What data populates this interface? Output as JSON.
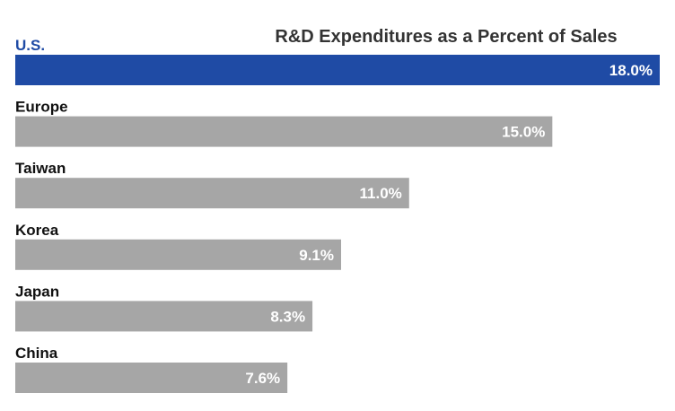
{
  "chart_data": {
    "type": "bar",
    "orientation": "horizontal",
    "title": "R&D Expenditures as a Percent of Sales",
    "categories": [
      "U.S.",
      "Europe",
      "Taiwan",
      "Korea",
      "Japan",
      "China"
    ],
    "values": [
      18.0,
      15.0,
      11.0,
      9.1,
      8.3,
      7.6
    ],
    "value_labels": [
      "18.0%",
      "15.0%",
      "11.0%",
      "9.1%",
      "8.3%",
      "7.6%"
    ],
    "highlight_category": "U.S.",
    "xlim": [
      0,
      18
    ],
    "xlabel": "",
    "ylabel": "",
    "grid": false,
    "legend": "none"
  },
  "colors": {
    "highlight": "#1F4BA5",
    "bar": "#A6A6A6",
    "highlight_label": "#1F4BA5",
    "label": "#111111",
    "title": "#333333",
    "value_text": "#FFFFFF"
  }
}
